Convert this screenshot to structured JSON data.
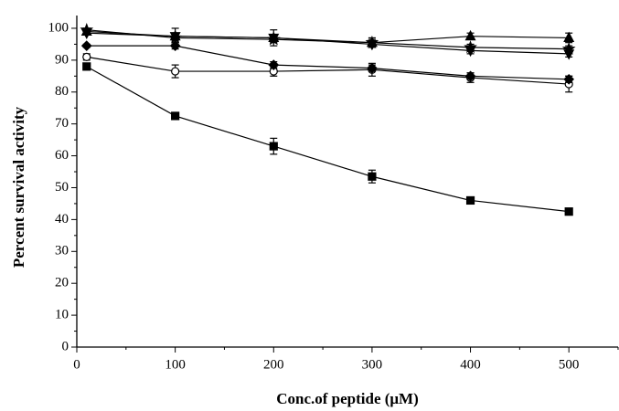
{
  "chart_data": {
    "type": "line",
    "x_label": "Conc.of peptide (μM)",
    "y_label": "Percent survival activity",
    "x": [
      10,
      100,
      200,
      300,
      400,
      500
    ],
    "series": [
      {
        "marker": "square",
        "filled": true,
        "color": "#000000",
        "values": [
          88,
          72.5,
          63,
          53.5,
          46,
          42.5
        ],
        "errors": [
          1,
          0.5,
          2.5,
          2,
          1,
          0.5
        ]
      },
      {
        "marker": "circle",
        "filled": false,
        "color": "#000000",
        "values": [
          91,
          86.5,
          86.5,
          87,
          84.5,
          82.5
        ],
        "errors": [
          1,
          2,
          1.5,
          2,
          1.5,
          2.5
        ]
      },
      {
        "marker": "diamond",
        "filled": true,
        "color": "#000000",
        "values": [
          94.5,
          94.5,
          88.5,
          87.5,
          85,
          84
        ],
        "errors": [
          0.5,
          1,
          1,
          1,
          1,
          1
        ]
      },
      {
        "marker": "triangle",
        "filled": true,
        "color": "#000000",
        "values": [
          99,
          97.5,
          97,
          95.5,
          97.5,
          97
        ],
        "errors": [
          1,
          2.5,
          2.5,
          1.5,
          1,
          1.5
        ]
      },
      {
        "marker": "star",
        "filled": true,
        "color": "#000000",
        "values": [
          99.5,
          97,
          96.5,
          95.5,
          94,
          93.5
        ],
        "errors": [
          0.5,
          1,
          1,
          1,
          1,
          1
        ]
      },
      {
        "marker": "triangle-down",
        "filled": true,
        "color": "#000000",
        "values": [
          98.5,
          97.5,
          97,
          95,
          93,
          92
        ],
        "errors": [
          0.5,
          1,
          1,
          1,
          1,
          1
        ]
      }
    ],
    "xlim": [
      0,
      550
    ],
    "ylim": [
      0,
      104
    ],
    "xticks": [
      0,
      100,
      200,
      300,
      400,
      500
    ],
    "yticks": [
      0,
      10,
      20,
      30,
      40,
      50,
      60,
      70,
      80,
      90,
      100
    ],
    "minor_xticks": [
      50,
      150,
      250,
      350,
      450,
      550
    ],
    "minor_yticks": [
      5,
      15,
      25,
      35,
      45,
      55,
      65,
      75,
      85,
      95
    ],
    "grid": false
  }
}
